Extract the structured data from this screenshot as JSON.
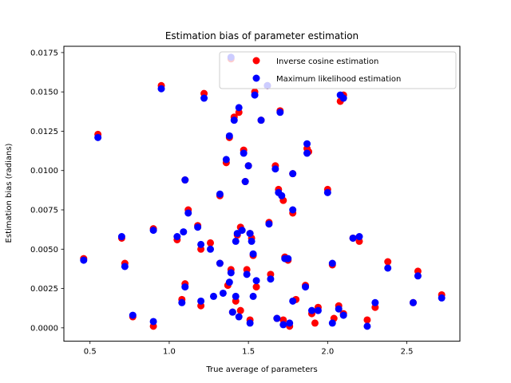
{
  "chart_data": {
    "type": "scatter",
    "title": "Estimation bias of parameter estimation",
    "xlabel": "True average of parameters",
    "ylabel": "Estimation bias (radians)",
    "xlim": [
      0.335,
      2.835
    ],
    "ylim": [
      -0.00085,
      0.0179
    ],
    "xticks": [
      0.5,
      1.0,
      1.5,
      2.0,
      2.5
    ],
    "xtick_labels": [
      "0.5",
      "1.0",
      "1.5",
      "2.0",
      "2.5"
    ],
    "yticks": [
      0.0,
      0.0025,
      0.005,
      0.0075,
      0.01,
      0.0125,
      0.015,
      0.0175
    ],
    "ytick_labels": [
      "0.0000",
      "0.0025",
      "0.0050",
      "0.0075",
      "0.0100",
      "0.0125",
      "0.0150",
      "0.0175"
    ],
    "legend_position": "top-right",
    "grid": false,
    "series": [
      {
        "name": "Inverse cosine estimation",
        "color": "#ff0000",
        "points": [
          [
            0.46,
            0.0044
          ],
          [
            0.55,
            0.0123
          ],
          [
            0.7,
            0.0057
          ],
          [
            0.72,
            0.0041
          ],
          [
            0.77,
            0.0007
          ],
          [
            0.9,
            0.0063
          ],
          [
            0.9,
            0.0001
          ],
          [
            0.95,
            0.0154
          ],
          [
            1.05,
            0.0056
          ],
          [
            1.08,
            0.0018
          ],
          [
            1.1,
            0.0094
          ],
          [
            1.1,
            0.0028
          ],
          [
            1.12,
            0.0075
          ],
          [
            1.18,
            0.0065
          ],
          [
            1.2,
            0.005
          ],
          [
            1.2,
            0.0014
          ],
          [
            1.22,
            0.0149
          ],
          [
            1.26,
            0.0054
          ],
          [
            1.32,
            0.0084
          ],
          [
            1.32,
            0.0041
          ],
          [
            1.36,
            0.0105
          ],
          [
            1.37,
            0.0027
          ],
          [
            1.38,
            0.0121
          ],
          [
            1.39,
            0.0171
          ],
          [
            1.39,
            0.0037
          ],
          [
            1.4,
            0.001
          ],
          [
            1.41,
            0.0134
          ],
          [
            1.42,
            0.0017
          ],
          [
            1.43,
            0.0059
          ],
          [
            1.44,
            0.0137
          ],
          [
            1.45,
            0.0064
          ],
          [
            1.45,
            0.0011
          ],
          [
            1.47,
            0.0113
          ],
          [
            1.48,
            0.0093
          ],
          [
            1.49,
            0.0037
          ],
          [
            1.5,
            0.0103
          ],
          [
            1.51,
            0.006
          ],
          [
            1.51,
            0.0005
          ],
          [
            1.52,
            0.0057
          ],
          [
            1.53,
            0.0046
          ],
          [
            1.54,
            0.015
          ],
          [
            1.55,
            0.0026
          ],
          [
            1.58,
            0.0132
          ],
          [
            1.62,
            0.0154
          ],
          [
            1.63,
            0.0067
          ],
          [
            1.64,
            0.0034
          ],
          [
            1.67,
            0.0103
          ],
          [
            1.68,
            0.0006
          ],
          [
            1.69,
            0.0088
          ],
          [
            1.7,
            0.0138
          ],
          [
            1.72,
            0.0081
          ],
          [
            1.72,
            0.0005
          ],
          [
            1.73,
            0.0045
          ],
          [
            1.75,
            0.0043
          ],
          [
            1.76,
            0.0001
          ],
          [
            1.78,
            0.0098
          ],
          [
            1.78,
            0.0073
          ],
          [
            1.8,
            0.0018
          ],
          [
            1.86,
            0.0027
          ],
          [
            1.87,
            0.0114
          ],
          [
            1.88,
            0.0112
          ],
          [
            1.9,
            0.0009
          ],
          [
            1.92,
            0.0003
          ],
          [
            1.94,
            0.0013
          ],
          [
            2.0,
            0.0088
          ],
          [
            2.03,
            0.004
          ],
          [
            2.04,
            0.0006
          ],
          [
            2.07,
            0.0014
          ],
          [
            2.08,
            0.0144
          ],
          [
            2.1,
            0.0009
          ],
          [
            2.1,
            0.0148
          ],
          [
            2.16,
            0.0057
          ],
          [
            2.2,
            0.0055
          ],
          [
            2.25,
            0.0005
          ],
          [
            2.3,
            0.0013
          ],
          [
            2.38,
            0.0042
          ],
          [
            2.54,
            0.0016
          ],
          [
            2.57,
            0.0036
          ],
          [
            2.72,
            0.0021
          ]
        ]
      },
      {
        "name": "Maximum likelihood estimation",
        "color": "#0000ff",
        "points": [
          [
            0.46,
            0.0043
          ],
          [
            0.55,
            0.0121
          ],
          [
            0.7,
            0.0058
          ],
          [
            0.72,
            0.0039
          ],
          [
            0.77,
            0.0008
          ],
          [
            0.9,
            0.0062
          ],
          [
            0.9,
            0.0004
          ],
          [
            0.95,
            0.0152
          ],
          [
            1.05,
            0.0058
          ],
          [
            1.08,
            0.0016
          ],
          [
            1.09,
            0.0061
          ],
          [
            1.1,
            0.0094
          ],
          [
            1.1,
            0.0026
          ],
          [
            1.12,
            0.0073
          ],
          [
            1.18,
            0.0064
          ],
          [
            1.2,
            0.0053
          ],
          [
            1.2,
            0.0017
          ],
          [
            1.22,
            0.0146
          ],
          [
            1.26,
            0.005
          ],
          [
            1.28,
            0.002
          ],
          [
            1.32,
            0.0085
          ],
          [
            1.32,
            0.0041
          ],
          [
            1.34,
            0.0022
          ],
          [
            1.36,
            0.0107
          ],
          [
            1.38,
            0.0029
          ],
          [
            1.38,
            0.0122
          ],
          [
            1.39,
            0.0172
          ],
          [
            1.39,
            0.0035
          ],
          [
            1.4,
            0.001
          ],
          [
            1.41,
            0.0132
          ],
          [
            1.42,
            0.002
          ],
          [
            1.42,
            0.0055
          ],
          [
            1.43,
            0.006
          ],
          [
            1.44,
            0.014
          ],
          [
            1.44,
            0.0007
          ],
          [
            1.46,
            0.0062
          ],
          [
            1.47,
            0.0111
          ],
          [
            1.48,
            0.0093
          ],
          [
            1.49,
            0.0034
          ],
          [
            1.5,
            0.0103
          ],
          [
            1.51,
            0.006
          ],
          [
            1.51,
            0.0003
          ],
          [
            1.52,
            0.0055
          ],
          [
            1.53,
            0.002
          ],
          [
            1.53,
            0.0047
          ],
          [
            1.54,
            0.0148
          ],
          [
            1.55,
            0.003
          ],
          [
            1.58,
            0.0132
          ],
          [
            1.62,
            0.0154
          ],
          [
            1.63,
            0.0066
          ],
          [
            1.64,
            0.0031
          ],
          [
            1.67,
            0.0101
          ],
          [
            1.68,
            0.0006
          ],
          [
            1.69,
            0.0086
          ],
          [
            1.7,
            0.0137
          ],
          [
            1.71,
            0.0084
          ],
          [
            1.72,
            0.0002
          ],
          [
            1.73,
            0.0044
          ],
          [
            1.75,
            0.0044
          ],
          [
            1.76,
            0.0003
          ],
          [
            1.78,
            0.0098
          ],
          [
            1.78,
            0.0075
          ],
          [
            1.78,
            0.0017
          ],
          [
            1.86,
            0.0026
          ],
          [
            1.87,
            0.0117
          ],
          [
            1.87,
            0.0111
          ],
          [
            1.9,
            0.0011
          ],
          [
            1.94,
            0.0011
          ],
          [
            2.0,
            0.0086
          ],
          [
            2.03,
            0.0041
          ],
          [
            2.03,
            0.0003
          ],
          [
            2.07,
            0.0012
          ],
          [
            2.08,
            0.0148
          ],
          [
            2.1,
            0.0008
          ],
          [
            2.1,
            0.0146
          ],
          [
            2.16,
            0.0057
          ],
          [
            2.2,
            0.0058
          ],
          [
            2.25,
            0.0001
          ],
          [
            2.3,
            0.0016
          ],
          [
            2.38,
            0.0038
          ],
          [
            2.54,
            0.0016
          ],
          [
            2.57,
            0.0033
          ],
          [
            2.72,
            0.0019
          ]
        ]
      }
    ]
  }
}
